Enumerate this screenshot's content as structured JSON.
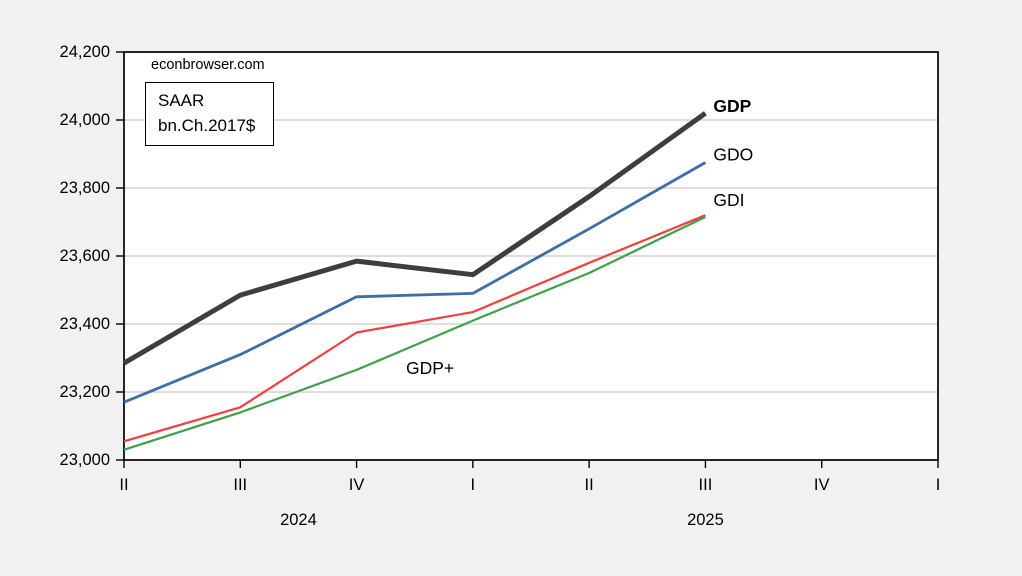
{
  "watermark": "econbrowser.com",
  "annotation_box": {
    "line1": "SAAR",
    "line2": "bn.Ch.2017$"
  },
  "colors": {
    "background": "#f1f1f1",
    "plot_background": "#ffffff",
    "grid": "#c9c9c9",
    "axis": "#000000"
  },
  "chart_data": {
    "type": "line",
    "title": "",
    "xlabel": "",
    "ylabel": "",
    "grid": "horizontal",
    "legend_position": "inline-end-labels",
    "categories": [
      "2024 Q2",
      "2024 Q3",
      "2024 Q4",
      "2025 Q1",
      "2025 Q2",
      "2025 Q3"
    ],
    "x_axis": {
      "tick_labels": [
        "II",
        "III",
        "IV",
        "I",
        "II",
        "III",
        "IV",
        "I"
      ],
      "year_labels": [
        {
          "text": "2024",
          "anchor_tick": 1.5
        },
        {
          "text": "2025",
          "anchor_tick": 5
        }
      ]
    },
    "y_axis": {
      "ylim": [
        23000,
        24200
      ],
      "tick_values": [
        23000,
        23200,
        23400,
        23600,
        23800,
        24000,
        24200
      ],
      "tick_labels": [
        "23,000",
        "23,200",
        "23,400",
        "23,600",
        "23,800",
        "24,000",
        "24,200"
      ]
    },
    "series": [
      {
        "name": "GDP",
        "color": "#3e3e3e",
        "label_color": "#000000",
        "bold_label": true,
        "line_width": 5,
        "values": [
          23285,
          23485,
          23585,
          23545,
          23775,
          24020
        ]
      },
      {
        "name": "GDO",
        "color": "#3d6ea6",
        "label_color": "#1d61a7",
        "bold_label": false,
        "line_width": 2.8,
        "values": [
          23170,
          23310,
          23480,
          23490,
          23680,
          23875
        ]
      },
      {
        "name": "GDI",
        "color": "#f04040",
        "label_color": "#f01480",
        "bold_label": false,
        "line_width": 2.2,
        "values": [
          23055,
          23155,
          23375,
          23435,
          23580,
          23720
        ]
      },
      {
        "name": "GDP+",
        "color": "#3fa14a",
        "label_color": "#00a03c",
        "bold_label": false,
        "line_width": 2.2,
        "values": [
          23030,
          23140,
          23265,
          23410,
          23550,
          23715
        ]
      }
    ]
  }
}
